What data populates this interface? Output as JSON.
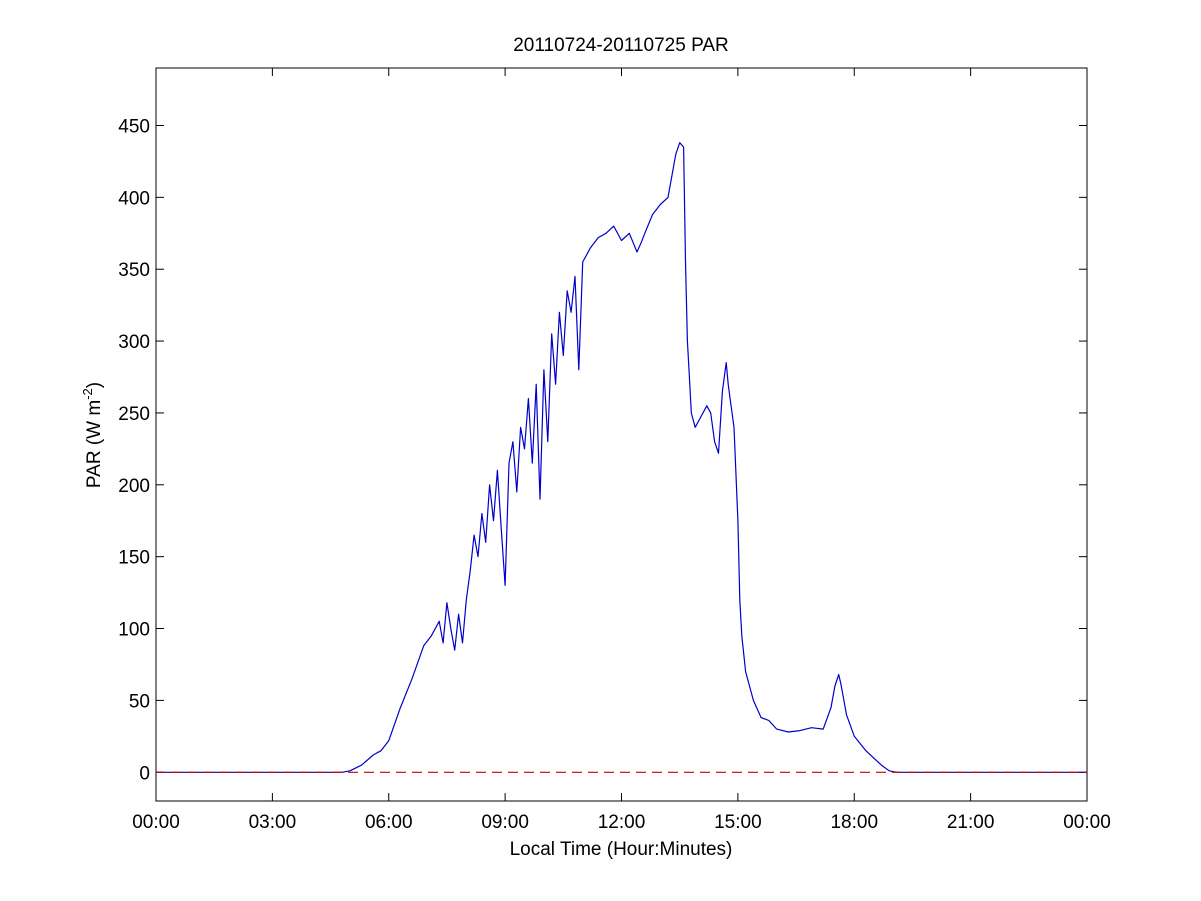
{
  "chart_data": {
    "type": "line",
    "title": "20110724-20110725 PAR",
    "xlabel": "Local Time (Hour:Minutes)",
    "ylabel": {
      "main": "PAR (W m",
      "sup": "-2",
      "close": ")"
    },
    "xlim": [
      0,
      24
    ],
    "ylim": [
      -20,
      490
    ],
    "grid": false,
    "x_ticks": [
      {
        "value": 0,
        "label": "00:00"
      },
      {
        "value": 3,
        "label": "03:00"
      },
      {
        "value": 6,
        "label": "06:00"
      },
      {
        "value": 9,
        "label": "09:00"
      },
      {
        "value": 12,
        "label": "12:00"
      },
      {
        "value": 15,
        "label": "15:00"
      },
      {
        "value": 18,
        "label": "18:00"
      },
      {
        "value": 21,
        "label": "21:00"
      },
      {
        "value": 24,
        "label": "00:00"
      }
    ],
    "y_ticks": [
      {
        "value": 0,
        "label": "0"
      },
      {
        "value": 50,
        "label": "50"
      },
      {
        "value": 100,
        "label": "100"
      },
      {
        "value": 150,
        "label": "150"
      },
      {
        "value": 200,
        "label": "200"
      },
      {
        "value": 250,
        "label": "250"
      },
      {
        "value": 300,
        "label": "300"
      },
      {
        "value": 350,
        "label": "350"
      },
      {
        "value": 400,
        "label": "400"
      },
      {
        "value": 450,
        "label": "450"
      }
    ],
    "series": [
      {
        "color": "#0000cc",
        "style": "solid",
        "x": [
          0,
          4.8,
          5.0,
          5.3,
          5.6,
          5.8,
          6.0,
          6.3,
          6.6,
          6.9,
          7.1,
          7.3,
          7.4,
          7.5,
          7.6,
          7.7,
          7.8,
          7.9,
          8.0,
          8.1,
          8.2,
          8.3,
          8.4,
          8.5,
          8.6,
          8.7,
          8.8,
          8.9,
          9.0,
          9.1,
          9.2,
          9.3,
          9.4,
          9.5,
          9.6,
          9.7,
          9.8,
          9.9,
          10.0,
          10.1,
          10.2,
          10.3,
          10.4,
          10.5,
          10.6,
          10.7,
          10.8,
          10.9,
          11.0,
          11.2,
          11.4,
          11.6,
          11.8,
          12.0,
          12.2,
          12.4,
          12.5,
          12.6,
          12.8,
          13.0,
          13.2,
          13.4,
          13.5,
          13.6,
          13.65,
          13.7,
          13.75,
          13.8,
          13.9,
          14.0,
          14.2,
          14.3,
          14.4,
          14.5,
          14.6,
          14.7,
          14.75,
          14.8,
          14.9,
          15.0,
          15.05,
          15.1,
          15.2,
          15.4,
          15.6,
          15.8,
          16.0,
          16.3,
          16.6,
          16.9,
          17.2,
          17.4,
          17.5,
          17.6,
          17.65,
          17.7,
          17.8,
          18.0,
          18.3,
          18.5,
          18.7,
          18.9,
          19.1,
          19.3,
          19.6,
          24
        ],
        "y": [
          0,
          0,
          1,
          5,
          12,
          15,
          22,
          45,
          65,
          88,
          95,
          105,
          90,
          118,
          100,
          85,
          110,
          90,
          120,
          140,
          165,
          150,
          180,
          160,
          200,
          175,
          210,
          170,
          130,
          215,
          230,
          195,
          240,
          225,
          260,
          215,
          270,
          190,
          280,
          230,
          305,
          270,
          320,
          290,
          335,
          320,
          345,
          280,
          355,
          365,
          372,
          375,
          380,
          370,
          375,
          362,
          368,
          375,
          388,
          395,
          400,
          430,
          438,
          435,
          355,
          300,
          275,
          250,
          240,
          245,
          255,
          250,
          230,
          222,
          265,
          285,
          270,
          260,
          240,
          175,
          120,
          95,
          70,
          50,
          38,
          36,
          30,
          28,
          29,
          31,
          30,
          45,
          60,
          68,
          62,
          55,
          40,
          25,
          15,
          10,
          5,
          1,
          0,
          0,
          0,
          0
        ]
      },
      {
        "color": "#cc0000",
        "style": "dashed",
        "x": [
          0,
          24
        ],
        "y": [
          0,
          0
        ]
      }
    ]
  }
}
